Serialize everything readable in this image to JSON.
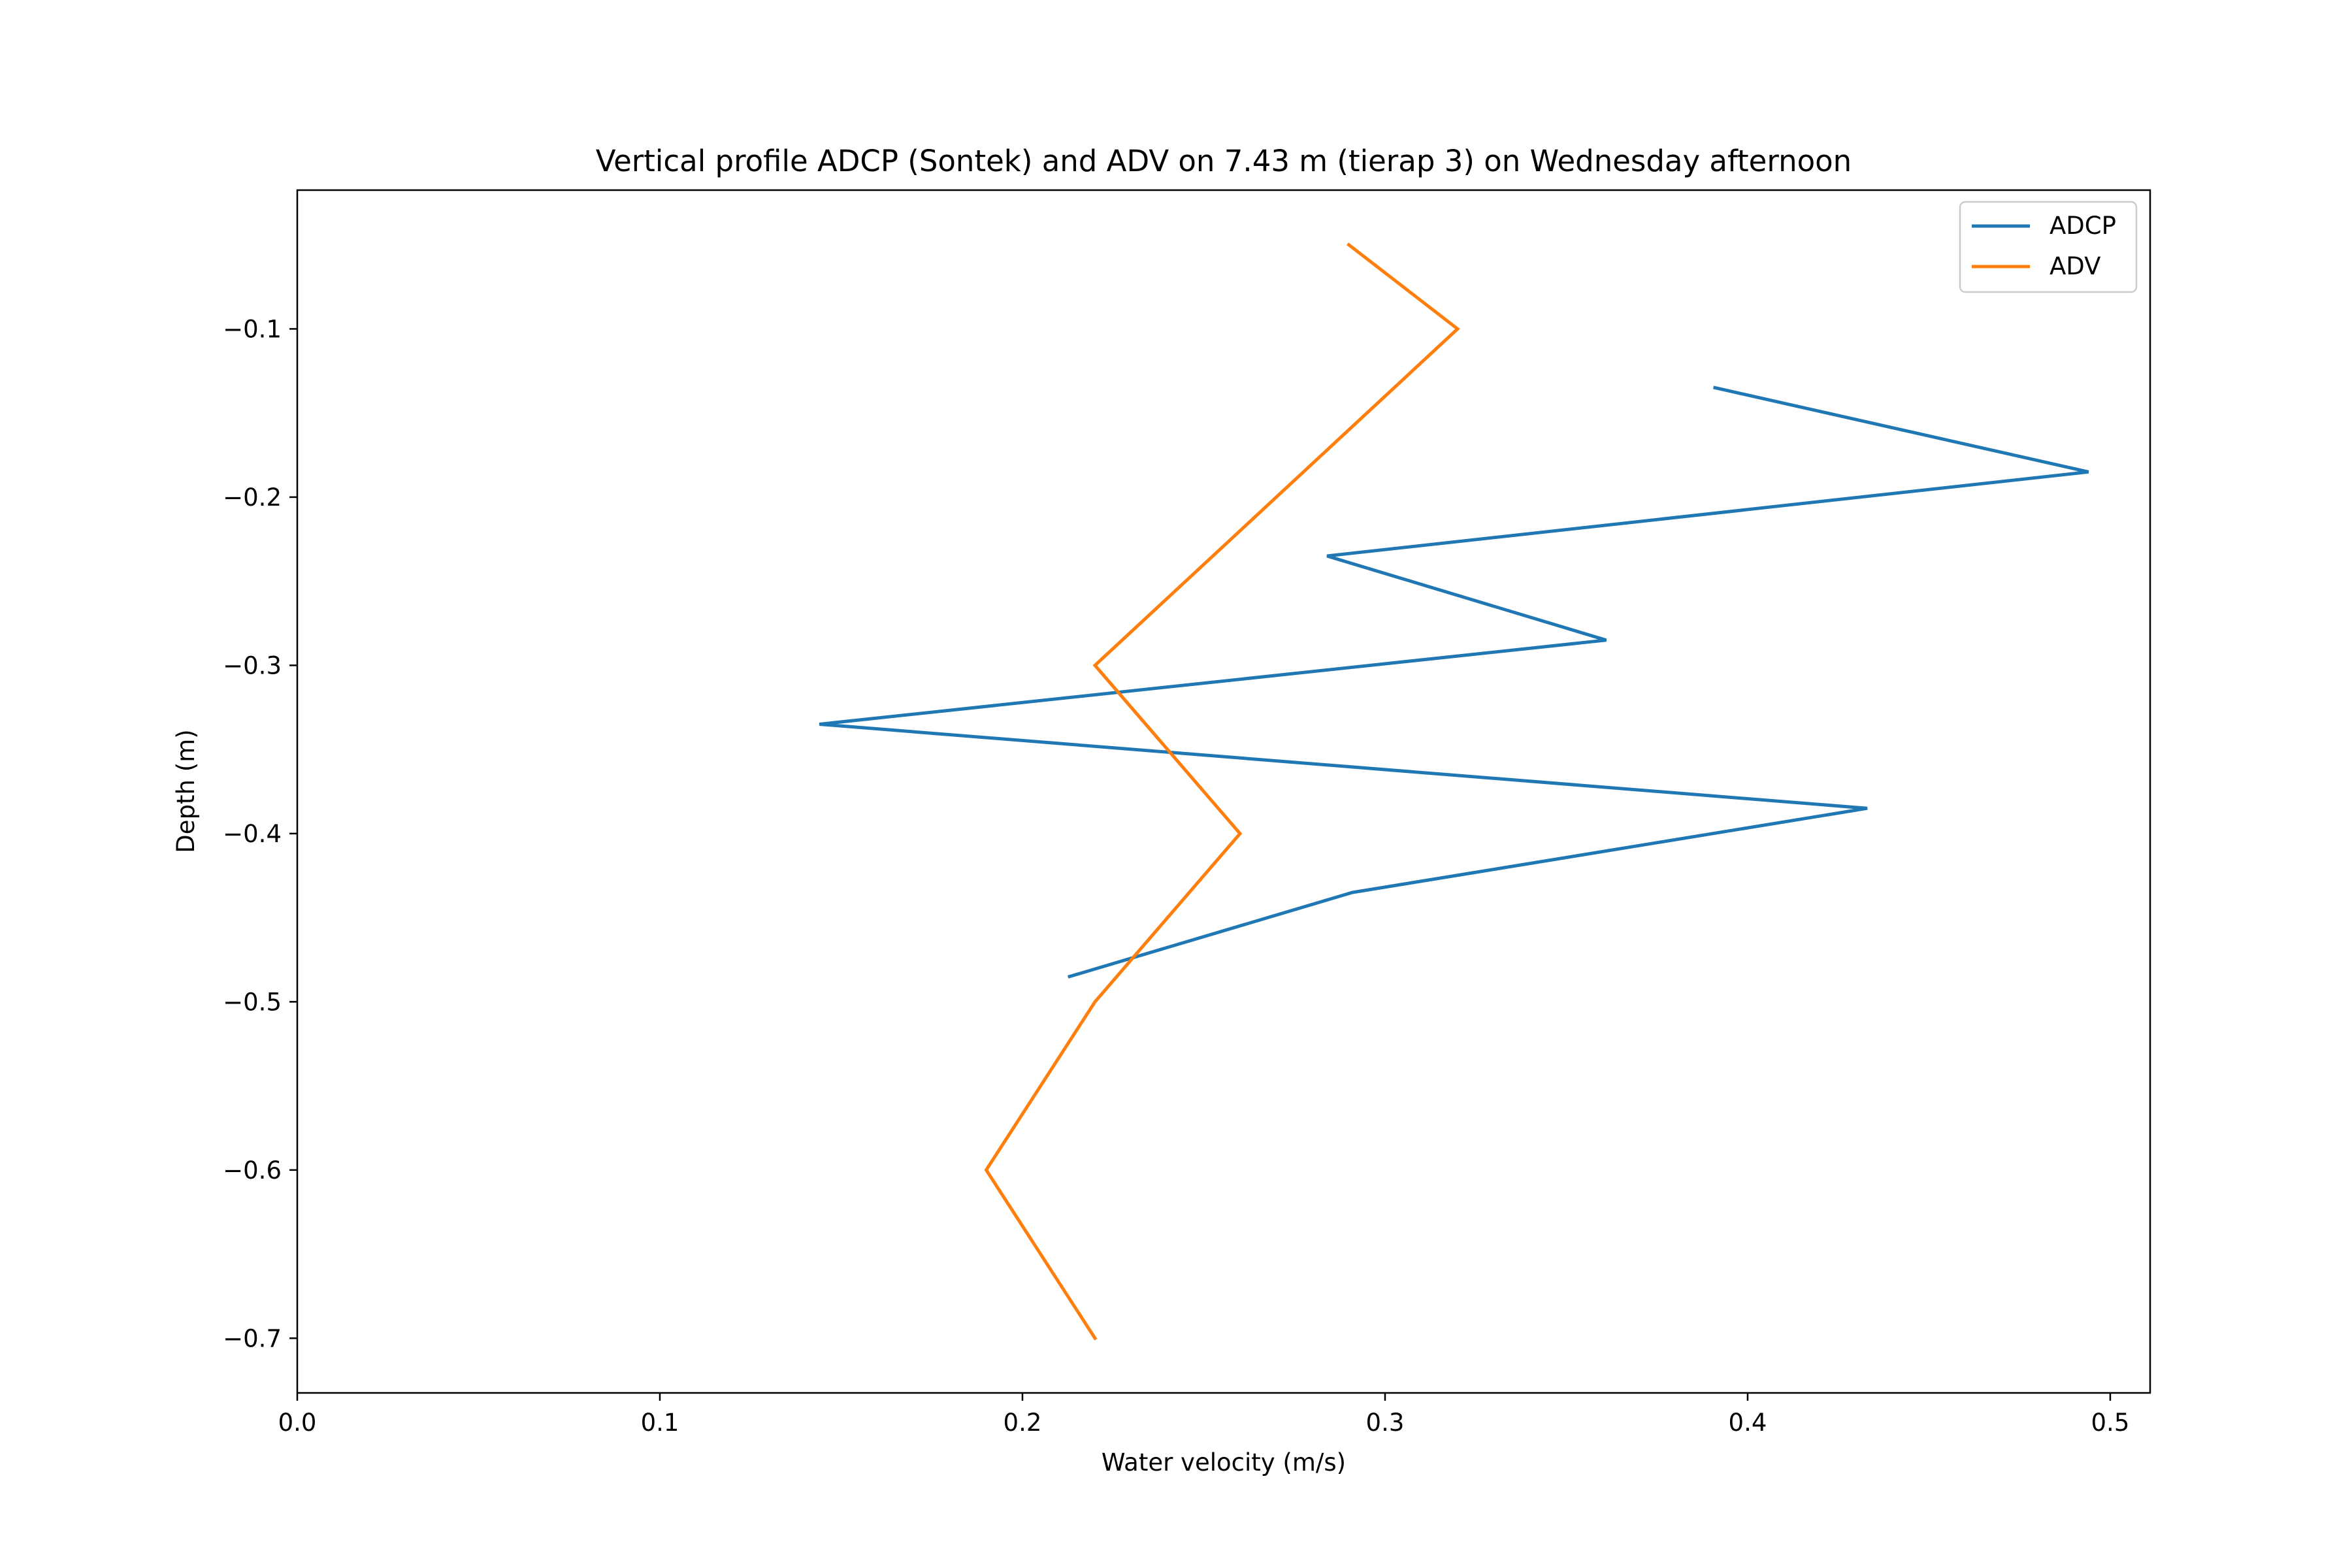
{
  "chart_data": {
    "type": "line",
    "title": "Vertical profile ADCP (Sontek) and ADV on 7.43 m (tierap 3) on Wednesday afternoon",
    "xlabel": "Water velocity (m/s)",
    "ylabel": "Depth (m)",
    "xlim": [
      0.0,
      0.511
    ],
    "ylim": [
      -0.7325,
      -0.0175
    ],
    "xticks": [
      0.0,
      0.1,
      0.2,
      0.3,
      0.4,
      0.5
    ],
    "xtick_labels": [
      "0.0",
      "0.1",
      "0.2",
      "0.3",
      "0.4",
      "0.5"
    ],
    "yticks": [
      -0.1,
      -0.2,
      -0.3,
      -0.4,
      -0.5,
      -0.6,
      -0.7
    ],
    "ytick_labels": [
      "−0.1",
      "−0.2",
      "−0.3",
      "−0.4",
      "−0.5",
      "−0.6",
      "−0.7"
    ],
    "grid": false,
    "legend_position": "top-right",
    "series": [
      {
        "name": "ADCP",
        "color": "#1f77b4",
        "x": [
          0.391,
          0.494,
          0.284,
          0.361,
          0.144,
          0.433,
          0.291,
          0.213
        ],
        "y": [
          -0.135,
          -0.185,
          -0.235,
          -0.285,
          -0.335,
          -0.385,
          -0.435,
          -0.485
        ]
      },
      {
        "name": "ADV",
        "color": "#ff7f0e",
        "x": [
          0.29,
          0.32,
          0.22,
          0.26,
          0.22,
          0.19,
          0.22
        ],
        "y": [
          -0.05,
          -0.1,
          -0.3,
          -0.4,
          -0.5,
          -0.6,
          -0.7
        ]
      }
    ]
  }
}
